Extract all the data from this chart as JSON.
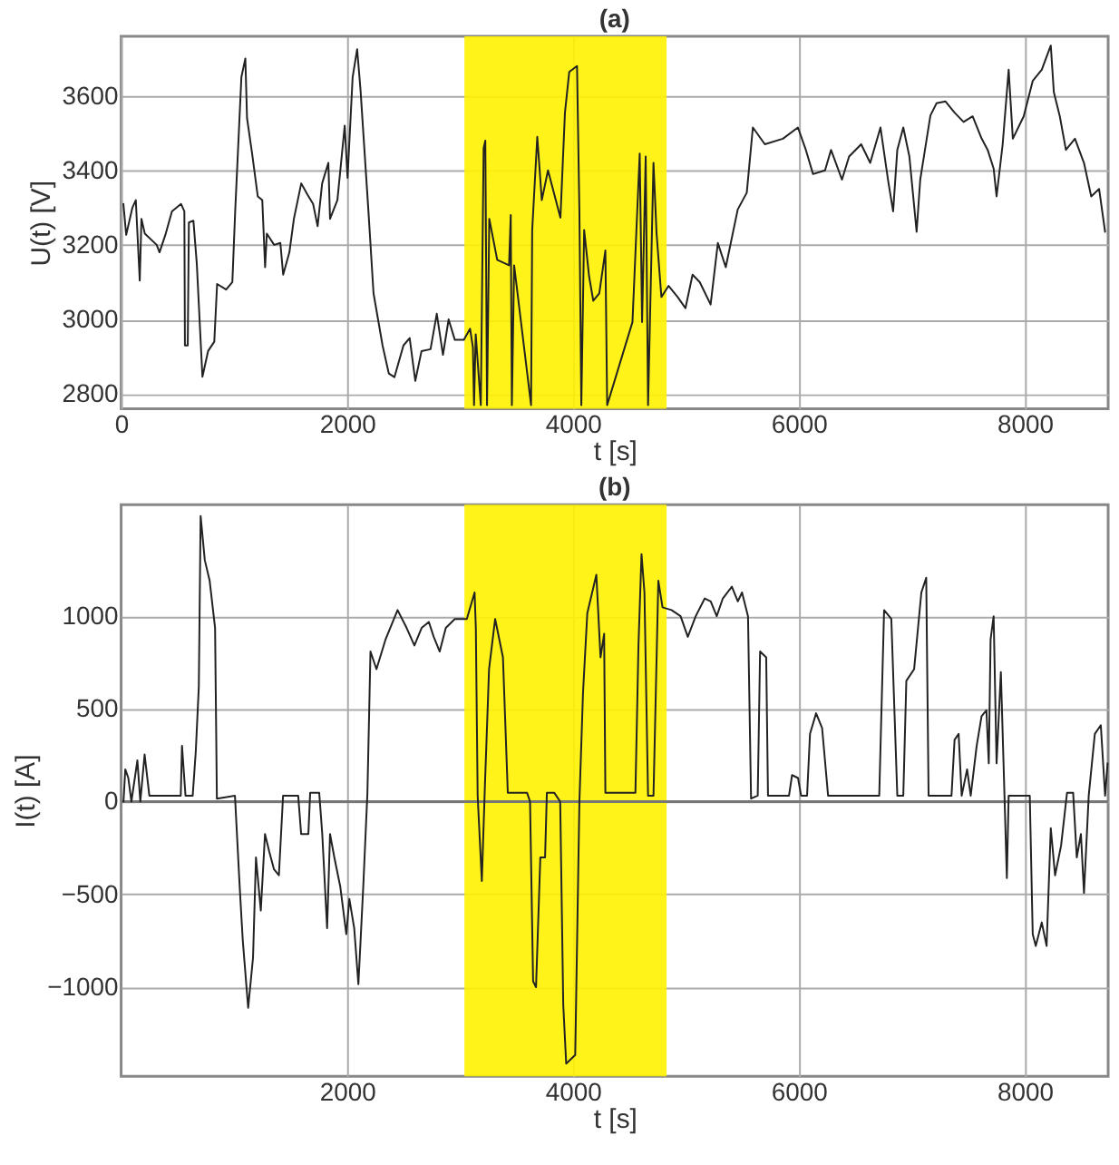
{
  "chart_data": [
    {
      "type": "line",
      "title": "(a)",
      "xlabel": "t [s]",
      "ylabel": "U(t) [V]",
      "xlim": [
        0,
        8740
      ],
      "ylim": [
        2760,
        3760
      ],
      "xticks": [
        0,
        2000,
        4000,
        6000,
        8000
      ],
      "yticks": [
        2800,
        3000,
        3200,
        3400,
        3600
      ],
      "grid": true,
      "line_style": "solid",
      "marker": "none",
      "bands": [
        {
          "axis": "x",
          "from": 3040,
          "to": 4830,
          "color": "#fff200"
        }
      ],
      "series": [
        {
          "color": "#222222",
          "x": [
            20,
            45,
            100,
            130,
            165,
            180,
            210,
            315,
            340,
            395,
            450,
            530,
            560,
            565,
            590,
            600,
            640,
            670,
            720,
            770,
            825,
            850,
            930,
            985,
            1010,
            1065,
            1100,
            1115,
            1160,
            1210,
            1250,
            1275,
            1290,
            1355,
            1410,
            1435,
            1490,
            1530,
            1595,
            1650,
            1700,
            1740,
            1780,
            1835,
            1850,
            1915,
            1980,
            2005,
            2050,
            2090,
            2120,
            2190,
            2235,
            2315,
            2370,
            2420,
            2500,
            2555,
            2605,
            2660,
            2740,
            2795,
            2850,
            2900,
            2955,
            3035,
            3090,
            3115,
            3125,
            3140,
            3185,
            3210,
            3225,
            3240,
            3260,
            3330,
            3435,
            3450,
            3460,
            3480,
            3630,
            3640,
            3685,
            3725,
            3780,
            3890,
            3930,
            3968,
            4037,
            4058,
            4075,
            4100,
            4144,
            4181,
            4234,
            4288,
            4304,
            4528,
            4592,
            4613,
            4645,
            4666,
            4714,
            4741,
            4784,
            4848,
            4928,
            4997,
            5060,
            5124,
            5220,
            5284,
            5354,
            5460,
            5540,
            5594,
            5700,
            5860,
            5993,
            6063,
            6127,
            6233,
            6286,
            6383,
            6446,
            6553,
            6633,
            6724,
            6793,
            6836,
            6873,
            6926,
            6980,
            7044,
            7076,
            7166,
            7220,
            7300,
            7380,
            7460,
            7540,
            7620,
            7673,
            7726,
            7752,
            7806,
            7859,
            7896,
            7992,
            8072,
            8152,
            8232,
            8259,
            8312,
            8366,
            8446,
            8526,
            8590,
            8660,
            8713
          ],
          "values": [
            3310,
            3227,
            3300,
            3320,
            3104,
            3270,
            3230,
            3200,
            3180,
            3230,
            3290,
            3310,
            3290,
            2930,
            2930,
            3260,
            3265,
            3150,
            2846,
            2915,
            2940,
            3095,
            3080,
            3100,
            3290,
            3650,
            3700,
            3540,
            3445,
            3330,
            3320,
            3140,
            3230,
            3200,
            3205,
            3120,
            3180,
            3270,
            3365,
            3335,
            3310,
            3250,
            3365,
            3420,
            3270,
            3320,
            3520,
            3380,
            3650,
            3725,
            3615,
            3290,
            3070,
            2930,
            2855,
            2845,
            2930,
            2950,
            2835,
            2915,
            2920,
            3015,
            2905,
            3000,
            2945,
            2945,
            2975,
            2925,
            2770,
            2960,
            2770,
            3460,
            3480,
            2770,
            3270,
            3160,
            3145,
            3280,
            2770,
            3145,
            2770,
            3240,
            3490,
            3320,
            3400,
            3273,
            3555,
            3664,
            3680,
            3290,
            2770,
            3240,
            3115,
            3050,
            3070,
            3185,
            2770,
            2993,
            3445,
            2993,
            3437,
            2770,
            3420,
            3232,
            3060,
            3090,
            3060,
            3030,
            3120,
            3100,
            3040,
            3205,
            3140,
            3295,
            3340,
            3515,
            3470,
            3485,
            3515,
            3455,
            3390,
            3400,
            3455,
            3375,
            3437,
            3470,
            3420,
            3515,
            3370,
            3290,
            3455,
            3515,
            3437,
            3235,
            3375,
            3547,
            3580,
            3585,
            3555,
            3530,
            3545,
            3485,
            3455,
            3405,
            3330,
            3470,
            3670,
            3485,
            3545,
            3640,
            3670,
            3735,
            3610,
            3545,
            3455,
            3485,
            3420,
            3330,
            3350,
            3235
          ]
        }
      ]
    },
    {
      "type": "line",
      "title": "(b)",
      "xlabel": "t [s]",
      "ylabel": "I(t) [A]",
      "xlim": [
        0,
        8740
      ],
      "ylim": [
        -1480,
        1600
      ],
      "xticks": [
        2000,
        4000,
        6000,
        8000
      ],
      "yticks": [
        -1000,
        -500,
        0,
        500,
        1000
      ],
      "grid": true,
      "line_style": "solid",
      "marker": "none",
      "bands": [
        {
          "axis": "x",
          "from": 3040,
          "to": 4830,
          "color": "#fff200"
        }
      ],
      "ref_lines": [
        {
          "axis": "y",
          "value": 0,
          "color": "#777777"
        }
      ],
      "series": [
        {
          "color": "#222222",
          "x": [
            21,
            37,
            64,
            91,
            144,
            170,
            208,
            250,
            528,
            539,
            570,
            634,
            661,
            688,
            704,
            741,
            784,
            832,
            848,
            1008,
            1050,
            1077,
            1125,
            1168,
            1194,
            1237,
            1274,
            1312,
            1354,
            1397,
            1434,
            1568,
            1594,
            1658,
            1674,
            1754,
            1781,
            1824,
            1850,
            1888,
            1941,
            1994,
            2021,
            2064,
            2101,
            2144,
            2181,
            2208,
            2261,
            2341,
            2448,
            2528,
            2597,
            2661,
            2725,
            2768,
            2821,
            2875,
            2955,
            3061,
            3130,
            3141,
            3157,
            3194,
            3221,
            3258,
            3312,
            3381,
            3424,
            3594,
            3621,
            3648,
            3674,
            3712,
            3754,
            3770,
            3835,
            3888,
            3915,
            3941,
            4021,
            4058,
            4090,
            4128,
            4208,
            4245,
            4277,
            4288,
            4554,
            4581,
            4608,
            4634,
            4666,
            4714,
            4757,
            4794,
            4874,
            4954,
            5018,
            5088,
            5168,
            5221,
            5274,
            5328,
            5408,
            5461,
            5498,
            5551,
            5578,
            5637,
            5658,
            5712,
            5728,
            5914,
            5941,
            5994,
            6021,
            6074,
            6100,
            6154,
            6207,
            6260,
            6713,
            6756,
            6820,
            6873,
            6926,
            6953,
            7022,
            7086,
            7129,
            7150,
            7353,
            7380,
            7416,
            7443,
            7491,
            7523,
            7576,
            7619,
            7662,
            7683,
            7699,
            7726,
            7752,
            7790,
            7822,
            7843,
            7859,
            8046,
            8072,
            8099,
            8152,
            8195,
            8232,
            8270,
            8323,
            8376,
            8430,
            8462,
            8499,
            8526,
            8568,
            8622,
            8675,
            8713,
            8735
          ],
          "values": [
            0,
            174,
            127,
            0,
            222,
            0,
            254,
            32,
            32,
            301,
            32,
            32,
            270,
            619,
            1539,
            1301,
            1190,
            936,
            16,
            32,
            -460,
            -746,
            -1111,
            -841,
            -301,
            -587,
            -175,
            -270,
            -365,
            -397,
            32,
            32,
            -175,
            -175,
            48,
            48,
            -175,
            -682,
            -175,
            -301,
            -460,
            -714,
            -524,
            -682,
            -984,
            -460,
            48,
            809,
            714,
            873,
            1032,
            936,
            841,
            936,
            968,
            888,
            809,
            936,
            984,
            984,
            1127,
            936,
            32,
            -428,
            79,
            714,
            984,
            777,
            48,
            48,
            0,
            -968,
            -1000,
            -301,
            -301,
            48,
            48,
            0,
            -1095,
            -1412,
            -1365,
            0,
            587,
            1016,
            1222,
            777,
            904,
            48,
            48,
            841,
            1333,
            1127,
            32,
            32,
            1190,
            1047,
            1032,
            999,
            888,
            999,
            1095,
            1079,
            999,
            1095,
            1158,
            1079,
            1127,
            999,
            16,
            32,
            809,
            777,
            32,
            32,
            143,
            127,
            32,
            32,
            365,
            476,
            397,
            32,
            32,
            1032,
            984,
            32,
            32,
            651,
            714,
            1127,
            1206,
            32,
            32,
            333,
            365,
            32,
            174,
            32,
            301,
            460,
            492,
            206,
            873,
            999,
            206,
            698,
            32,
            -412,
            32,
            32,
            -714,
            -778,
            -651,
            -778,
            -143,
            -397,
            -238,
            48,
            48,
            -301,
            -175,
            -492,
            32,
            365,
            412,
            32,
            206
          ]
        }
      ]
    }
  ]
}
